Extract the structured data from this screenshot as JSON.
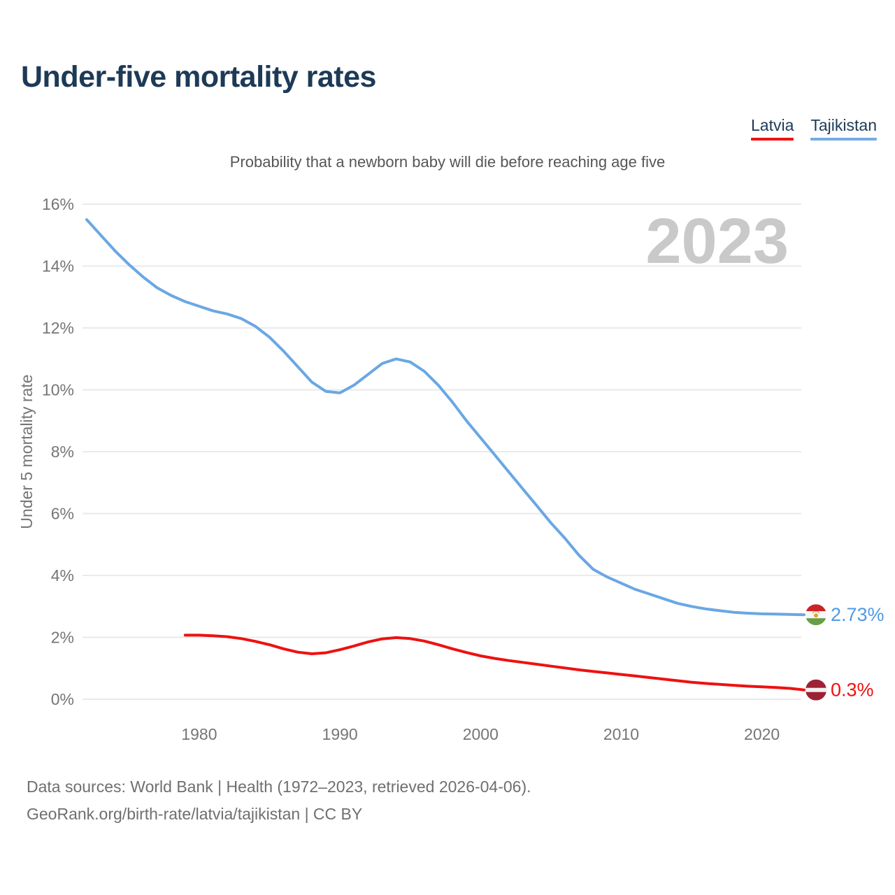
{
  "header": {
    "title": "Under-five mortality rates"
  },
  "legend": {
    "items": [
      {
        "label": "Latvia",
        "color": "#EE1111"
      },
      {
        "label": "Tajikistan",
        "color": "#74ACE4"
      }
    ]
  },
  "chart_data": {
    "type": "line",
    "title": "Under-five mortality rates",
    "subtitle": "Probability that a newborn baby will die before reaching age five",
    "watermark": "2023",
    "ylabel": "Under 5 mortality rate",
    "xlabel": "",
    "ylim": [
      0,
      16
    ],
    "xlim": [
      1972,
      2023
    ],
    "y_ticks": [
      0,
      2,
      4,
      6,
      8,
      10,
      12,
      14,
      16
    ],
    "y_tick_suffix": "%",
    "x_ticks": [
      1980,
      1990,
      2000,
      2010,
      2020
    ],
    "grid": "horizontal",
    "legend_position": "top-right",
    "series": [
      {
        "name": "Tajikistan",
        "flag": "tajikistan",
        "color": "#6AA7E4",
        "label_color": "#4E9AE4",
        "end_label": "2.73%",
        "points": [
          [
            1972,
            15.5
          ],
          [
            1973,
            15.0
          ],
          [
            1974,
            14.5
          ],
          [
            1975,
            14.05
          ],
          [
            1976,
            13.65
          ],
          [
            1977,
            13.3
          ],
          [
            1978,
            13.05
          ],
          [
            1979,
            12.85
          ],
          [
            1980,
            12.7
          ],
          [
            1981,
            12.55
          ],
          [
            1982,
            12.45
          ],
          [
            1983,
            12.3
          ],
          [
            1984,
            12.05
          ],
          [
            1985,
            11.7
          ],
          [
            1986,
            11.25
          ],
          [
            1987,
            10.75
          ],
          [
            1988,
            10.25
          ],
          [
            1989,
            9.95
          ],
          [
            1990,
            9.9
          ],
          [
            1991,
            10.15
          ],
          [
            1992,
            10.5
          ],
          [
            1993,
            10.85
          ],
          [
            1994,
            11.0
          ],
          [
            1995,
            10.9
          ],
          [
            1996,
            10.6
          ],
          [
            1997,
            10.15
          ],
          [
            1998,
            9.6
          ],
          [
            1999,
            9.0
          ],
          [
            2000,
            8.45
          ],
          [
            2001,
            7.9
          ],
          [
            2002,
            7.35
          ],
          [
            2003,
            6.8
          ],
          [
            2004,
            6.25
          ],
          [
            2005,
            5.7
          ],
          [
            2006,
            5.2
          ],
          [
            2007,
            4.65
          ],
          [
            2008,
            4.2
          ],
          [
            2009,
            3.95
          ],
          [
            2010,
            3.75
          ],
          [
            2011,
            3.55
          ],
          [
            2012,
            3.4
          ],
          [
            2013,
            3.25
          ],
          [
            2014,
            3.1
          ],
          [
            2015,
            3.0
          ],
          [
            2016,
            2.92
          ],
          [
            2017,
            2.86
          ],
          [
            2018,
            2.81
          ],
          [
            2019,
            2.78
          ],
          [
            2020,
            2.76
          ],
          [
            2021,
            2.75
          ],
          [
            2022,
            2.74
          ],
          [
            2023,
            2.73
          ]
        ]
      },
      {
        "name": "Latvia",
        "flag": "latvia",
        "color": "#EE1111",
        "label_color": "#EE1111",
        "end_label": "0.3%",
        "points": [
          [
            1979,
            2.07
          ],
          [
            1980,
            2.07
          ],
          [
            1981,
            2.05
          ],
          [
            1982,
            2.02
          ],
          [
            1983,
            1.96
          ],
          [
            1984,
            1.87
          ],
          [
            1985,
            1.76
          ],
          [
            1986,
            1.63
          ],
          [
            1987,
            1.52
          ],
          [
            1988,
            1.47
          ],
          [
            1989,
            1.5
          ],
          [
            1990,
            1.6
          ],
          [
            1991,
            1.72
          ],
          [
            1992,
            1.85
          ],
          [
            1993,
            1.95
          ],
          [
            1994,
            1.99
          ],
          [
            1995,
            1.96
          ],
          [
            1996,
            1.88
          ],
          [
            1997,
            1.76
          ],
          [
            1998,
            1.63
          ],
          [
            1999,
            1.51
          ],
          [
            2000,
            1.4
          ],
          [
            2001,
            1.32
          ],
          [
            2002,
            1.25
          ],
          [
            2003,
            1.19
          ],
          [
            2004,
            1.13
          ],
          [
            2005,
            1.07
          ],
          [
            2006,
            1.01
          ],
          [
            2007,
            0.95
          ],
          [
            2008,
            0.9
          ],
          [
            2009,
            0.85
          ],
          [
            2010,
            0.8
          ],
          [
            2011,
            0.75
          ],
          [
            2012,
            0.7
          ],
          [
            2013,
            0.65
          ],
          [
            2014,
            0.6
          ],
          [
            2015,
            0.55
          ],
          [
            2016,
            0.51
          ],
          [
            2017,
            0.48
          ],
          [
            2018,
            0.45
          ],
          [
            2019,
            0.42
          ],
          [
            2020,
            0.4
          ],
          [
            2021,
            0.38
          ],
          [
            2022,
            0.35
          ],
          [
            2023,
            0.3
          ]
        ]
      }
    ]
  },
  "footer": {
    "line1": "Data sources: World Bank | Health (1972–2023, retrieved 2026-04-06).",
    "line2": "GeoRank.org/birth-rate/latvia/tajikistan | CC BY"
  }
}
